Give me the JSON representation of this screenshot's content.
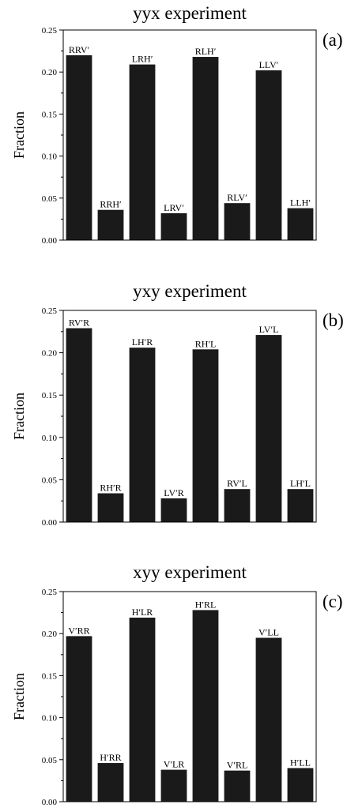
{
  "chart_data": [
    {
      "type": "bar",
      "title": "yyx experiment",
      "panel_label": "(a)",
      "ylabel": "Fraction",
      "xlabel": "",
      "ylim": [
        0,
        0.25
      ],
      "yticks": [
        "0.00",
        "0.05",
        "0.10",
        "0.15",
        "0.20",
        "0.25"
      ],
      "categories": [
        "RRV′",
        "RRH′",
        "LRH′",
        "LRV′",
        "RLH′",
        "RLV′",
        "LLV′",
        "LLH′"
      ],
      "values": [
        0.22,
        0.036,
        0.209,
        0.032,
        0.218,
        0.044,
        0.202,
        0.038
      ],
      "bar_color": "#1a1a1a"
    },
    {
      "type": "bar",
      "title": "yxy experiment",
      "panel_label": "(b)",
      "ylabel": "Fraction",
      "xlabel": "",
      "ylim": [
        0,
        0.25
      ],
      "yticks": [
        "0.00",
        "0.05",
        "0.10",
        "0.15",
        "0.20",
        "0.25"
      ],
      "categories": [
        "RV′R",
        "RH′R",
        "LH′R",
        "LV′R",
        "RH′L",
        "RV′L",
        "LV′L",
        "LH′L"
      ],
      "values": [
        0.229,
        0.034,
        0.206,
        0.028,
        0.204,
        0.039,
        0.221,
        0.039
      ],
      "bar_color": "#1a1a1a"
    },
    {
      "type": "bar",
      "title": "xyy experiment",
      "panel_label": "(c)",
      "ylabel": "Fraction",
      "xlabel": "",
      "ylim": [
        0,
        0.25
      ],
      "yticks": [
        "0.00",
        "0.05",
        "0.10",
        "0.15",
        "0.20",
        "0.25"
      ],
      "categories": [
        "V′RR",
        "H′RR",
        "H′LR",
        "V′LR",
        "H′RL",
        "V′RL",
        "V′LL",
        "H′LL"
      ],
      "values": [
        0.197,
        0.046,
        0.219,
        0.038,
        0.228,
        0.037,
        0.195,
        0.04
      ],
      "bar_color": "#1a1a1a"
    }
  ]
}
